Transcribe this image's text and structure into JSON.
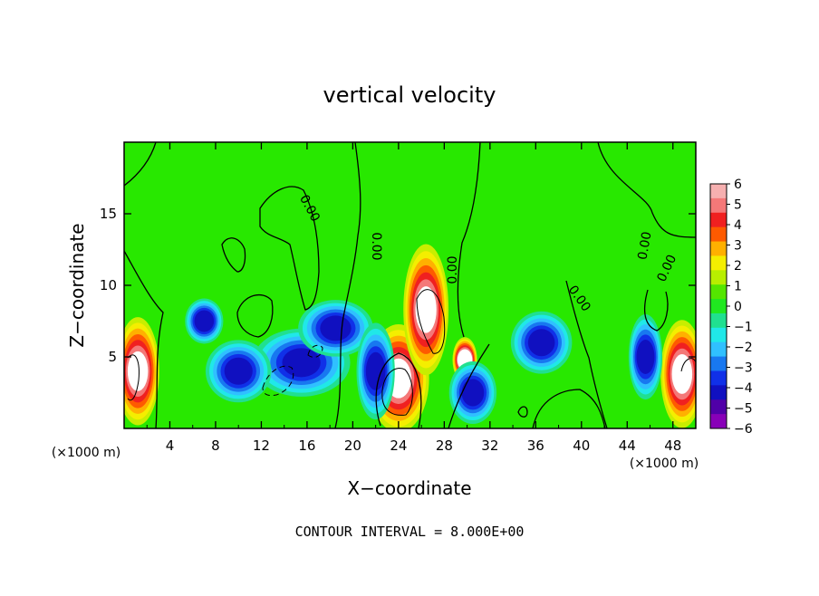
{
  "chart_data": {
    "type": "heatmap",
    "title": "vertical velocity",
    "xlabel": "X−coordinate",
    "ylabel": "Z−coordinate",
    "x_unit_left": "(×1000 m)",
    "x_unit_right": "(×1000 m)",
    "xlim": [
      0,
      50
    ],
    "ylim": [
      0,
      20
    ],
    "x_ticks": [
      "4",
      "8",
      "12",
      "16",
      "20",
      "24",
      "28",
      "32",
      "36",
      "40",
      "44",
      "48"
    ],
    "y_ticks": [
      "5",
      "10",
      "15"
    ],
    "contour_labels": [
      "0.00",
      "0.00",
      "0.00",
      "0.00",
      "0.00",
      "0.00"
    ],
    "footer": "CONTOUR INTERVAL = 8.000E+00",
    "colorbar": {
      "range": [
        -6,
        6
      ],
      "tick_labels": [
        "6",
        "5",
        "4",
        "3",
        "2",
        "1",
        "0",
        "−1",
        "−2",
        "−3",
        "−4",
        "−5",
        "−6"
      ],
      "colors": [
        "#f6b0b0",
        "#f47878",
        "#f02020",
        "#fe5a00",
        "#ffb000",
        "#f4ee00",
        "#b8ee00",
        "#54e600",
        "#20e820",
        "#20e090",
        "#20e8e8",
        "#30c0ff",
        "#1878f0",
        "#1030e8",
        "#1010c0",
        "#5000a8",
        "#8800b8"
      ]
    },
    "features": [
      {
        "kind": "updraft",
        "x": 1.2,
        "z": 4.0,
        "rx": 1.4,
        "rz": 3.4
      },
      {
        "kind": "updraft",
        "x": 24.0,
        "z": 3.5,
        "rx": 2.2,
        "rz": 3.4
      },
      {
        "kind": "updraft",
        "x": 26.4,
        "z": 8.3,
        "rx": 1.5,
        "rz": 4.2
      },
      {
        "kind": "updraft",
        "x": 48.8,
        "z": 3.8,
        "rx": 1.4,
        "rz": 3.4
      },
      {
        "kind": "updraft",
        "x": 29.8,
        "z": 4.8,
        "rx": 0.6,
        "rz": 1.2
      },
      {
        "kind": "downdraft",
        "x": 15.5,
        "z": 4.6,
        "rx": 3.8,
        "rz": 2.0
      },
      {
        "kind": "downdraft",
        "x": 18.5,
        "z": 7.0,
        "rx": 2.8,
        "rz": 1.6
      },
      {
        "kind": "downdraft",
        "x": 10.0,
        "z": 4.0,
        "rx": 2.4,
        "rz": 1.8
      },
      {
        "kind": "downdraft",
        "x": 7.0,
        "z": 7.5,
        "rx": 1.2,
        "rz": 1.2
      },
      {
        "kind": "downdraft",
        "x": 30.5,
        "z": 2.5,
        "rx": 1.6,
        "rz": 1.8
      },
      {
        "kind": "downdraft",
        "x": 36.5,
        "z": 6.0,
        "rx": 2.2,
        "rz": 1.8
      },
      {
        "kind": "downdraft",
        "x": 45.6,
        "z": 5.0,
        "rx": 1.0,
        "rz": 2.6
      },
      {
        "kind": "downdraft",
        "x": 22.0,
        "z": 4.0,
        "rx": 1.2,
        "rz": 3.0
      }
    ]
  }
}
